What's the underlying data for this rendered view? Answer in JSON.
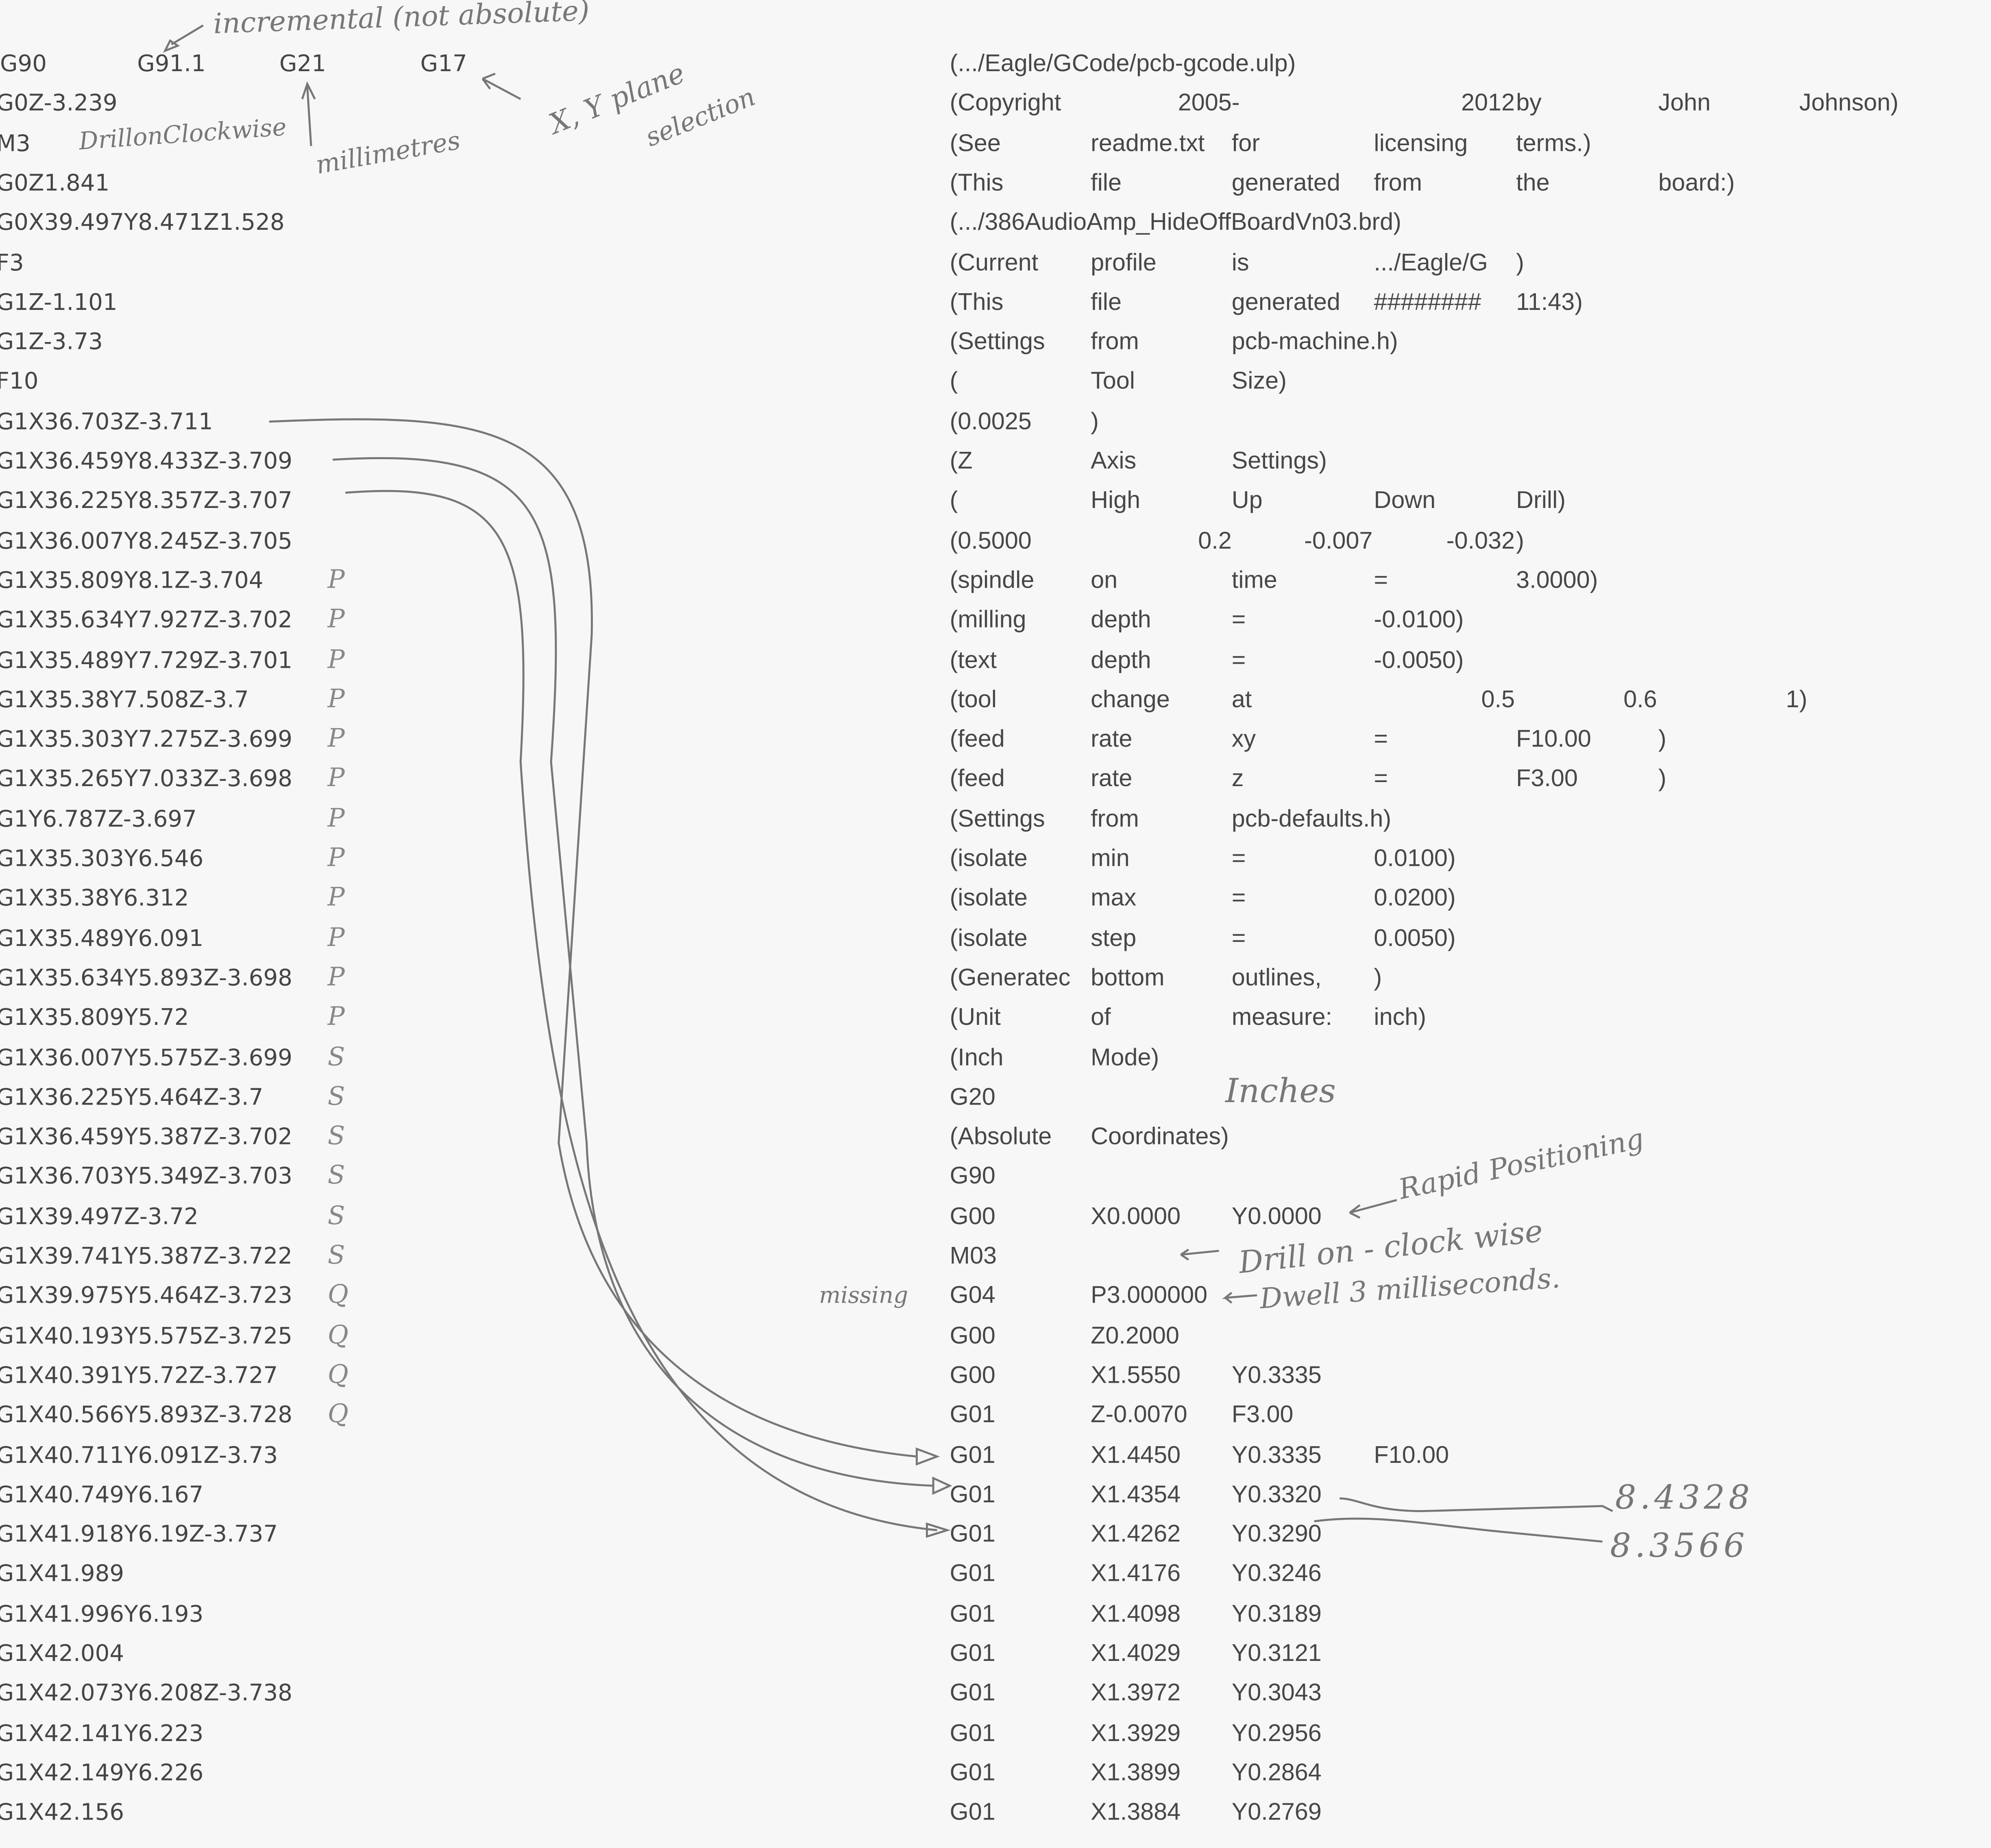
{
  "left_listing": {
    "header_row": [
      "G90",
      "G91.1",
      "G21",
      "G17"
    ],
    "lines": [
      "G0Z-3.239",
      "M3",
      "G0Z1.841",
      "G0X39.497Y8.471Z1.528",
      "F3",
      "G1Z-1.101",
      "G1Z-3.73",
      "F10",
      "G1X36.703Z-3.711",
      "G1X36.459Y8.433Z-3.709",
      "G1X36.225Y8.357Z-3.707",
      "G1X36.007Y8.245Z-3.705",
      "G1X35.809Y8.1Z-3.704",
      "G1X35.634Y7.927Z-3.702",
      "G1X35.489Y7.729Z-3.701",
      "G1X35.38Y7.508Z-3.7",
      "G1X35.303Y7.275Z-3.699",
      "G1X35.265Y7.033Z-3.698",
      "G1Y6.787Z-3.697",
      "G1X35.303Y6.546",
      "G1X35.38Y6.312",
      "G1X35.489Y6.091",
      "G1X35.634Y5.893Z-3.698",
      "G1X35.809Y5.72",
      "G1X36.007Y5.575Z-3.699",
      "G1X36.225Y5.464Z-3.7",
      "G1X36.459Y5.387Z-3.702",
      "G1X36.703Y5.349Z-3.703",
      "G1X39.497Z-3.72",
      "G1X39.741Y5.387Z-3.722",
      "G1X39.975Y5.464Z-3.723",
      "G1X40.193Y5.575Z-3.725",
      "G1X40.391Y5.72Z-3.727",
      "G1X40.566Y5.893Z-3.728",
      "G1X40.711Y6.091Z-3.73",
      "G1X40.749Y6.167",
      "G1X41.918Y6.19Z-3.737",
      "G1X41.989",
      "G1X41.996Y6.193",
      "G1X42.004",
      "G1X42.073Y6.208Z-3.738",
      "G1X42.141Y6.223",
      "G1X42.149Y6.226",
      "G1X42.156"
    ]
  },
  "right_listing": [
    [
      "(.../Eagle/GCode/pcb-gcode.ulp)"
    ],
    [
      "(Copyright",
      "2005",
      "-",
      "2012",
      "by",
      "John",
      "Johnson)"
    ],
    [
      "(See",
      "readme.txt",
      "for",
      "licensing",
      "terms.)"
    ],
    [
      "(This",
      "file",
      "generated",
      "from",
      "the",
      "board:)"
    ],
    [
      "(.../386AudioAmp_HideOffBoardVn03.brd)"
    ],
    [
      "(Current",
      "profile",
      "is",
      ".../Eagle/G",
      ")"
    ],
    [
      "(This",
      "file",
      "generated",
      "########",
      "11:43)"
    ],
    [
      "(Settings",
      "from",
      "pcb-machine.h)"
    ],
    [
      "(",
      "Tool",
      "Size)"
    ],
    [
      "(0.0025",
      ")"
    ],
    [
      "(Z",
      "Axis",
      "Settings)"
    ],
    [
      "(",
      "High",
      "Up",
      "Down",
      "Drill)"
    ],
    [
      "(0.5000",
      "0.2",
      "-0.007",
      "-0.032",
      ")"
    ],
    [
      "(spindle",
      "on",
      "time",
      "=",
      "3.0000)"
    ],
    [
      "(milling",
      "depth",
      "=",
      "-0.0100)"
    ],
    [
      "(text",
      "depth",
      "=",
      "-0.0050)"
    ],
    [
      "(tool",
      "change",
      "at",
      "0.5",
      "0.6",
      "1",
      ")"
    ],
    [
      "(feed",
      "rate",
      "xy",
      "=",
      "F10.00",
      ")"
    ],
    [
      "(feed",
      "rate",
      "z",
      "=",
      "F3.00",
      ")"
    ],
    [
      "(Settings",
      "from",
      "pcb-defaults.h)"
    ],
    [
      "(isolate",
      "min",
      "=",
      "0.0100)"
    ],
    [
      "(isolate",
      "max",
      "=",
      "0.0200)"
    ],
    [
      "(isolate",
      "step",
      "=",
      "0.0050)"
    ],
    [
      "(Generatec",
      "bottom",
      "outlines,",
      ")"
    ],
    [
      "(Unit",
      "of",
      "measure:",
      "inch)"
    ],
    [
      "(Inch",
      "Mode)"
    ],
    [
      "G20"
    ],
    [
      "(Absolute",
      "Coordinates)"
    ],
    [
      "G90"
    ],
    [
      "G00",
      "X0.0000",
      "Y0.0000"
    ],
    [
      "M03"
    ],
    [
      "G04",
      "P3.000000"
    ],
    [
      "G00",
      "Z0.2000"
    ],
    [
      "G00",
      "X1.5550",
      "Y0.3335"
    ],
    [
      "G01",
      "Z-0.0070",
      "F3.00"
    ],
    [
      "G01",
      "X1.4450",
      "Y0.3335",
      "F10.00"
    ],
    [
      "G01",
      "X1.4354",
      "Y0.3320"
    ],
    [
      "G01",
      "X1.4262",
      "Y0.3290"
    ],
    [
      "G01",
      "X1.4176",
      "Y0.3246"
    ],
    [
      "G01",
      "X1.4098",
      "Y0.3189"
    ],
    [
      "G01",
      "X1.4029",
      "Y0.3121"
    ],
    [
      "G01",
      "X1.3972",
      "Y0.3043"
    ],
    [
      "G01",
      "X1.3929",
      "Y0.2956"
    ],
    [
      "G01",
      "X1.3899",
      "Y0.2864"
    ],
    [
      "G01",
      "X1.3884",
      "Y0.2769"
    ]
  ],
  "handwritten": {
    "incremental": "incremental (not absolute)",
    "millimetres": "millimetres",
    "plane": "X, Y plane",
    "selection": "selection",
    "drill_cw": "DrillonClockwise",
    "inches": "Inches",
    "rapid": "Rapid Positioning",
    "drill_on": "Drill on - clock wise",
    "dwell": "Dwell 3 milliseconds.",
    "missing": "missing",
    "val1": "8.4328",
    "val2": "8.3566"
  },
  "margin_marks": [
    "P",
    "P",
    "P",
    "P",
    "P",
    "P",
    "P",
    "P",
    "P",
    "P",
    "P",
    "P",
    "S",
    "S",
    "S",
    "S",
    "S",
    "S",
    "Q",
    "Q",
    "Q",
    "Q"
  ],
  "colors": {
    "paper": "#f6f7f6",
    "print": "#454545",
    "pencil": "#777777"
  }
}
